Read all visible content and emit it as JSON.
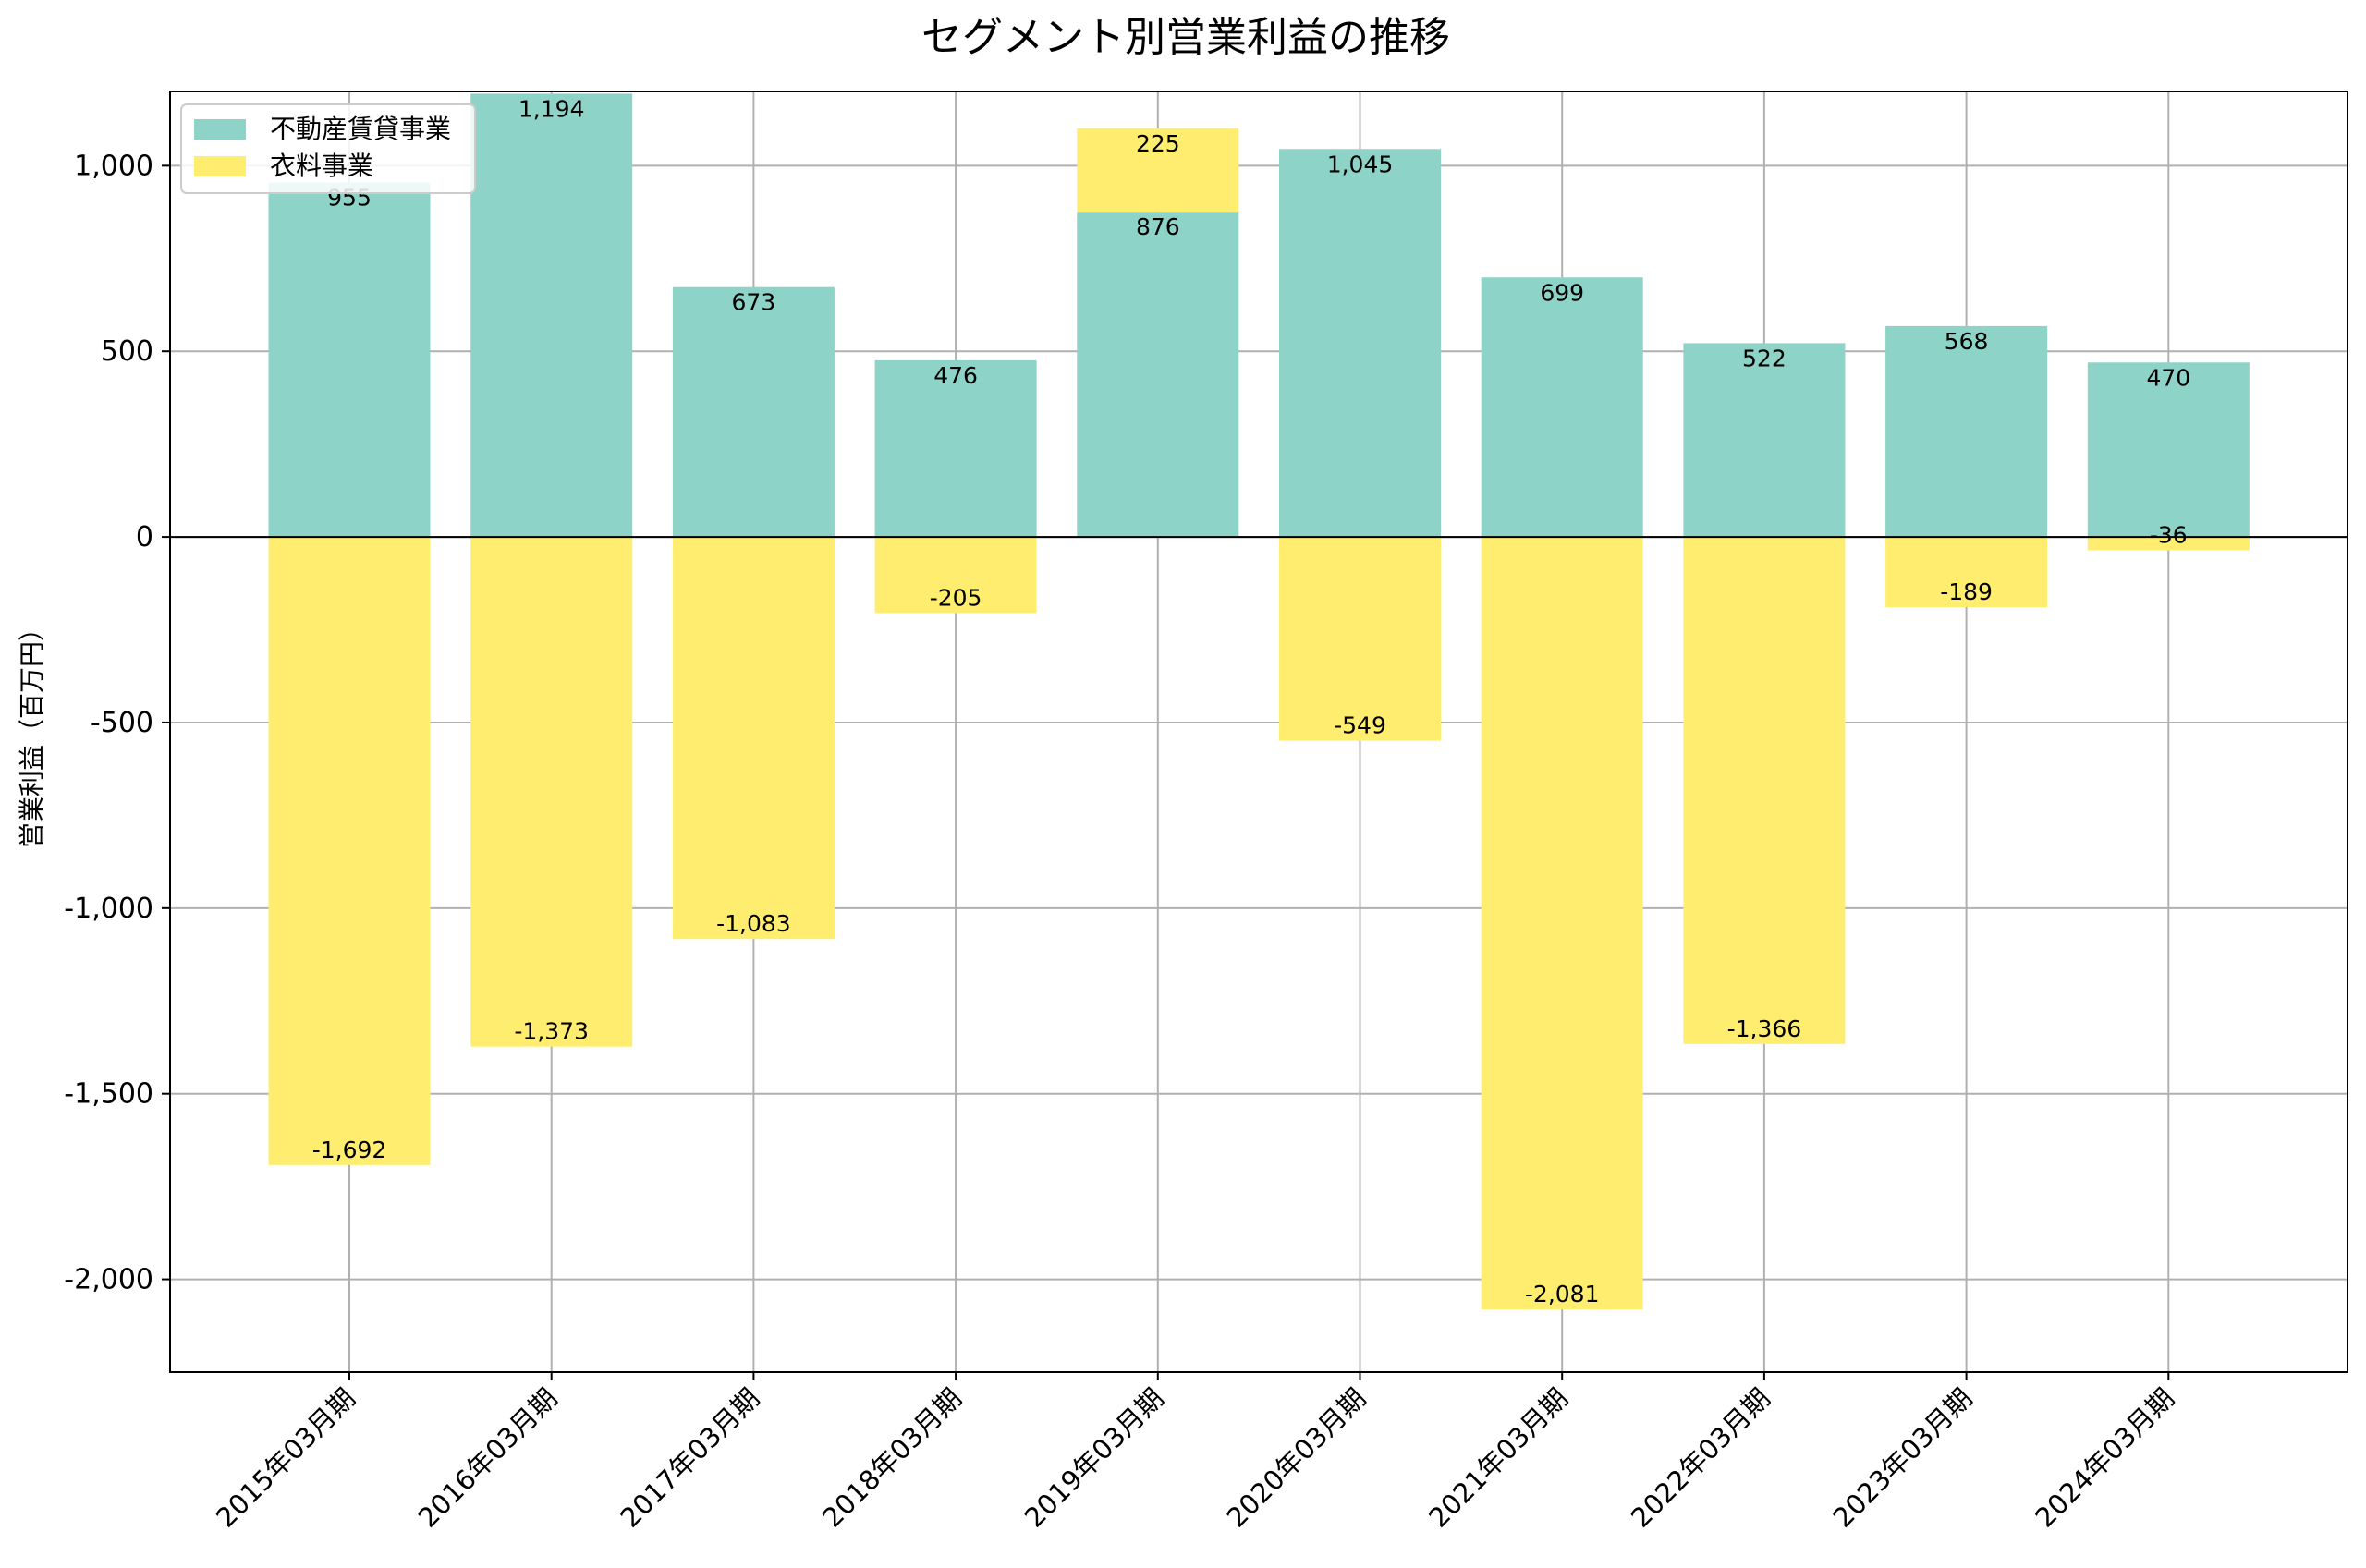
{
  "chart_data": {
    "type": "bar",
    "stacked": true,
    "title": "セグメント別営業利益の推移",
    "xlabel": "",
    "ylabel": "営業利益（百万円）",
    "ylim": [
      -2250,
      1200
    ],
    "yticks": [
      1000,
      500,
      0,
      -500,
      -1000,
      -1500,
      -2000
    ],
    "ytick_labels": [
      "1,000",
      "500",
      "0",
      "-500",
      "-1,000",
      "-1,500",
      "-2,000"
    ],
    "categories": [
      "2015年03月期",
      "2016年03月期",
      "2017年03月期",
      "2018年03月期",
      "2019年03月期",
      "2020年03月期",
      "2021年03月期",
      "2022年03月期",
      "2023年03月期",
      "2024年03月期"
    ],
    "series": [
      {
        "name": "不動産賃貸事業",
        "color": "#8dd3c7",
        "values": [
          955,
          1194,
          673,
          476,
          876,
          1045,
          699,
          522,
          568,
          470
        ],
        "labels": [
          "955",
          "1,194",
          "673",
          "476",
          "876",
          "1,045",
          "699",
          "522",
          "568",
          "470"
        ]
      },
      {
        "name": "衣料事業",
        "color": "#ffed6f",
        "values": [
          -1692,
          -1373,
          -1083,
          -205,
          225,
          -549,
          -2081,
          -1366,
          -189,
          -36
        ],
        "labels": [
          "-1,692",
          "-1,373",
          "-1,083",
          "-205",
          "225",
          "-549",
          "-2,081",
          "-1,366",
          "-189",
          "-36"
        ]
      }
    ],
    "grid": true,
    "legend_position": "top-left"
  }
}
